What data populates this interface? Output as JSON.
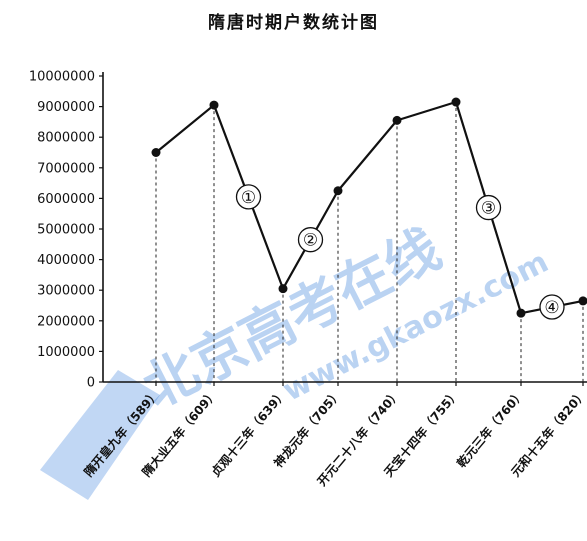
{
  "chart_data": {
    "type": "line",
    "title": "隋唐时期户数统计图",
    "categories": [
      "隋开皇九年（589）",
      "隋大业五年（609）",
      "贞观十三年（639）",
      "神龙元年（705）",
      "开元二十八年（740）",
      "天宝十四年（755）",
      "乾元三年（760）",
      "元和十五年（820）"
    ],
    "values": [
      7500000,
      9050000,
      3050000,
      6250000,
      8550000,
      9150000,
      2250000,
      2650000
    ],
    "ylim": [
      0,
      10000000
    ],
    "yticks": [
      0,
      1000000,
      2000000,
      3000000,
      4000000,
      5000000,
      6000000,
      7000000,
      8000000,
      9000000,
      10000000
    ],
    "xlabel": "",
    "ylabel": "",
    "grid": false,
    "drop_lines": "dashed",
    "annotations": [
      {
        "label": "①",
        "between": [
          1,
          2
        ]
      },
      {
        "label": "②",
        "between": [
          2,
          3
        ]
      },
      {
        "label": "③",
        "between": [
          5,
          6
        ]
      },
      {
        "label": "④",
        "between": [
          6,
          7
        ]
      }
    ]
  },
  "watermark": {
    "main": "北京高考在线",
    "url": "www.gkaozx.com",
    "color": "#1f6fd6"
  }
}
